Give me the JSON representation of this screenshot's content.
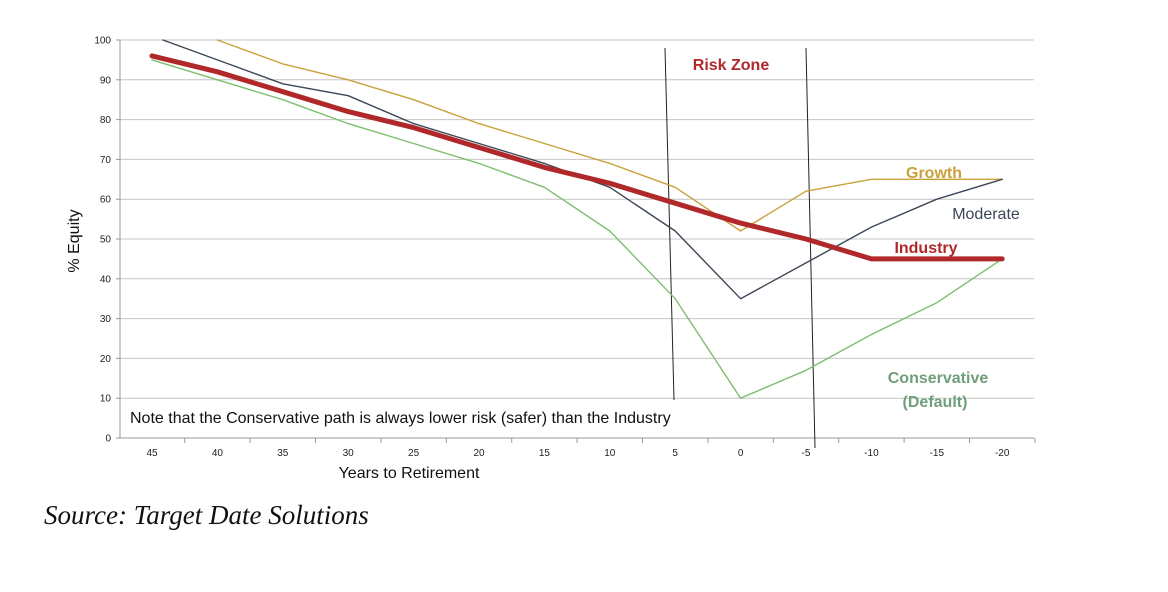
{
  "chart_data": {
    "type": "line",
    "xlabel": "Years to Retirement",
    "ylabel": "% Equity",
    "ylim": [
      0,
      100
    ],
    "yticks": [
      0,
      10,
      20,
      30,
      40,
      50,
      60,
      70,
      80,
      90,
      100
    ],
    "x": [
      45,
      40,
      35,
      30,
      25,
      20,
      15,
      10,
      5,
      0,
      -5,
      -10,
      -15,
      -20
    ],
    "x_tick_labels": [
      "45",
      "40",
      "35",
      "30",
      "25",
      "20",
      "15",
      "10",
      "5",
      "0",
      "-5",
      "-10",
      "-15",
      "-20"
    ],
    "grid": "horizontal",
    "series": [
      {
        "name": "Growth",
        "color": "#c9a13b",
        "values": [
          103,
          100,
          94,
          90,
          85,
          79,
          74,
          69,
          63,
          52,
          62,
          65,
          65,
          65
        ]
      },
      {
        "name": "Moderate",
        "color": "#3b4656",
        "values": [
          101,
          95,
          89,
          86,
          79,
          74,
          69,
          63,
          52,
          35,
          44,
          53,
          60,
          65
        ]
      },
      {
        "name": "Industry",
        "color": "#b0282a",
        "values": [
          96,
          92,
          87,
          82,
          78,
          73,
          68,
          64,
          59,
          54,
          50,
          45,
          45,
          45
        ]
      },
      {
        "name": "Conservative",
        "name_line2": "(Default)",
        "color": "#7cbf6e",
        "label_color": "#6f9e7b",
        "values": [
          95,
          90,
          85,
          79,
          74,
          69,
          63,
          52,
          35,
          10,
          17,
          26,
          34,
          45
        ]
      }
    ],
    "annotations": {
      "risk_zone": "Risk Zone",
      "note": "Note that the Conservative path is always lower risk (safer) than the Industry"
    }
  },
  "source": "Source: Target Date Solutions"
}
